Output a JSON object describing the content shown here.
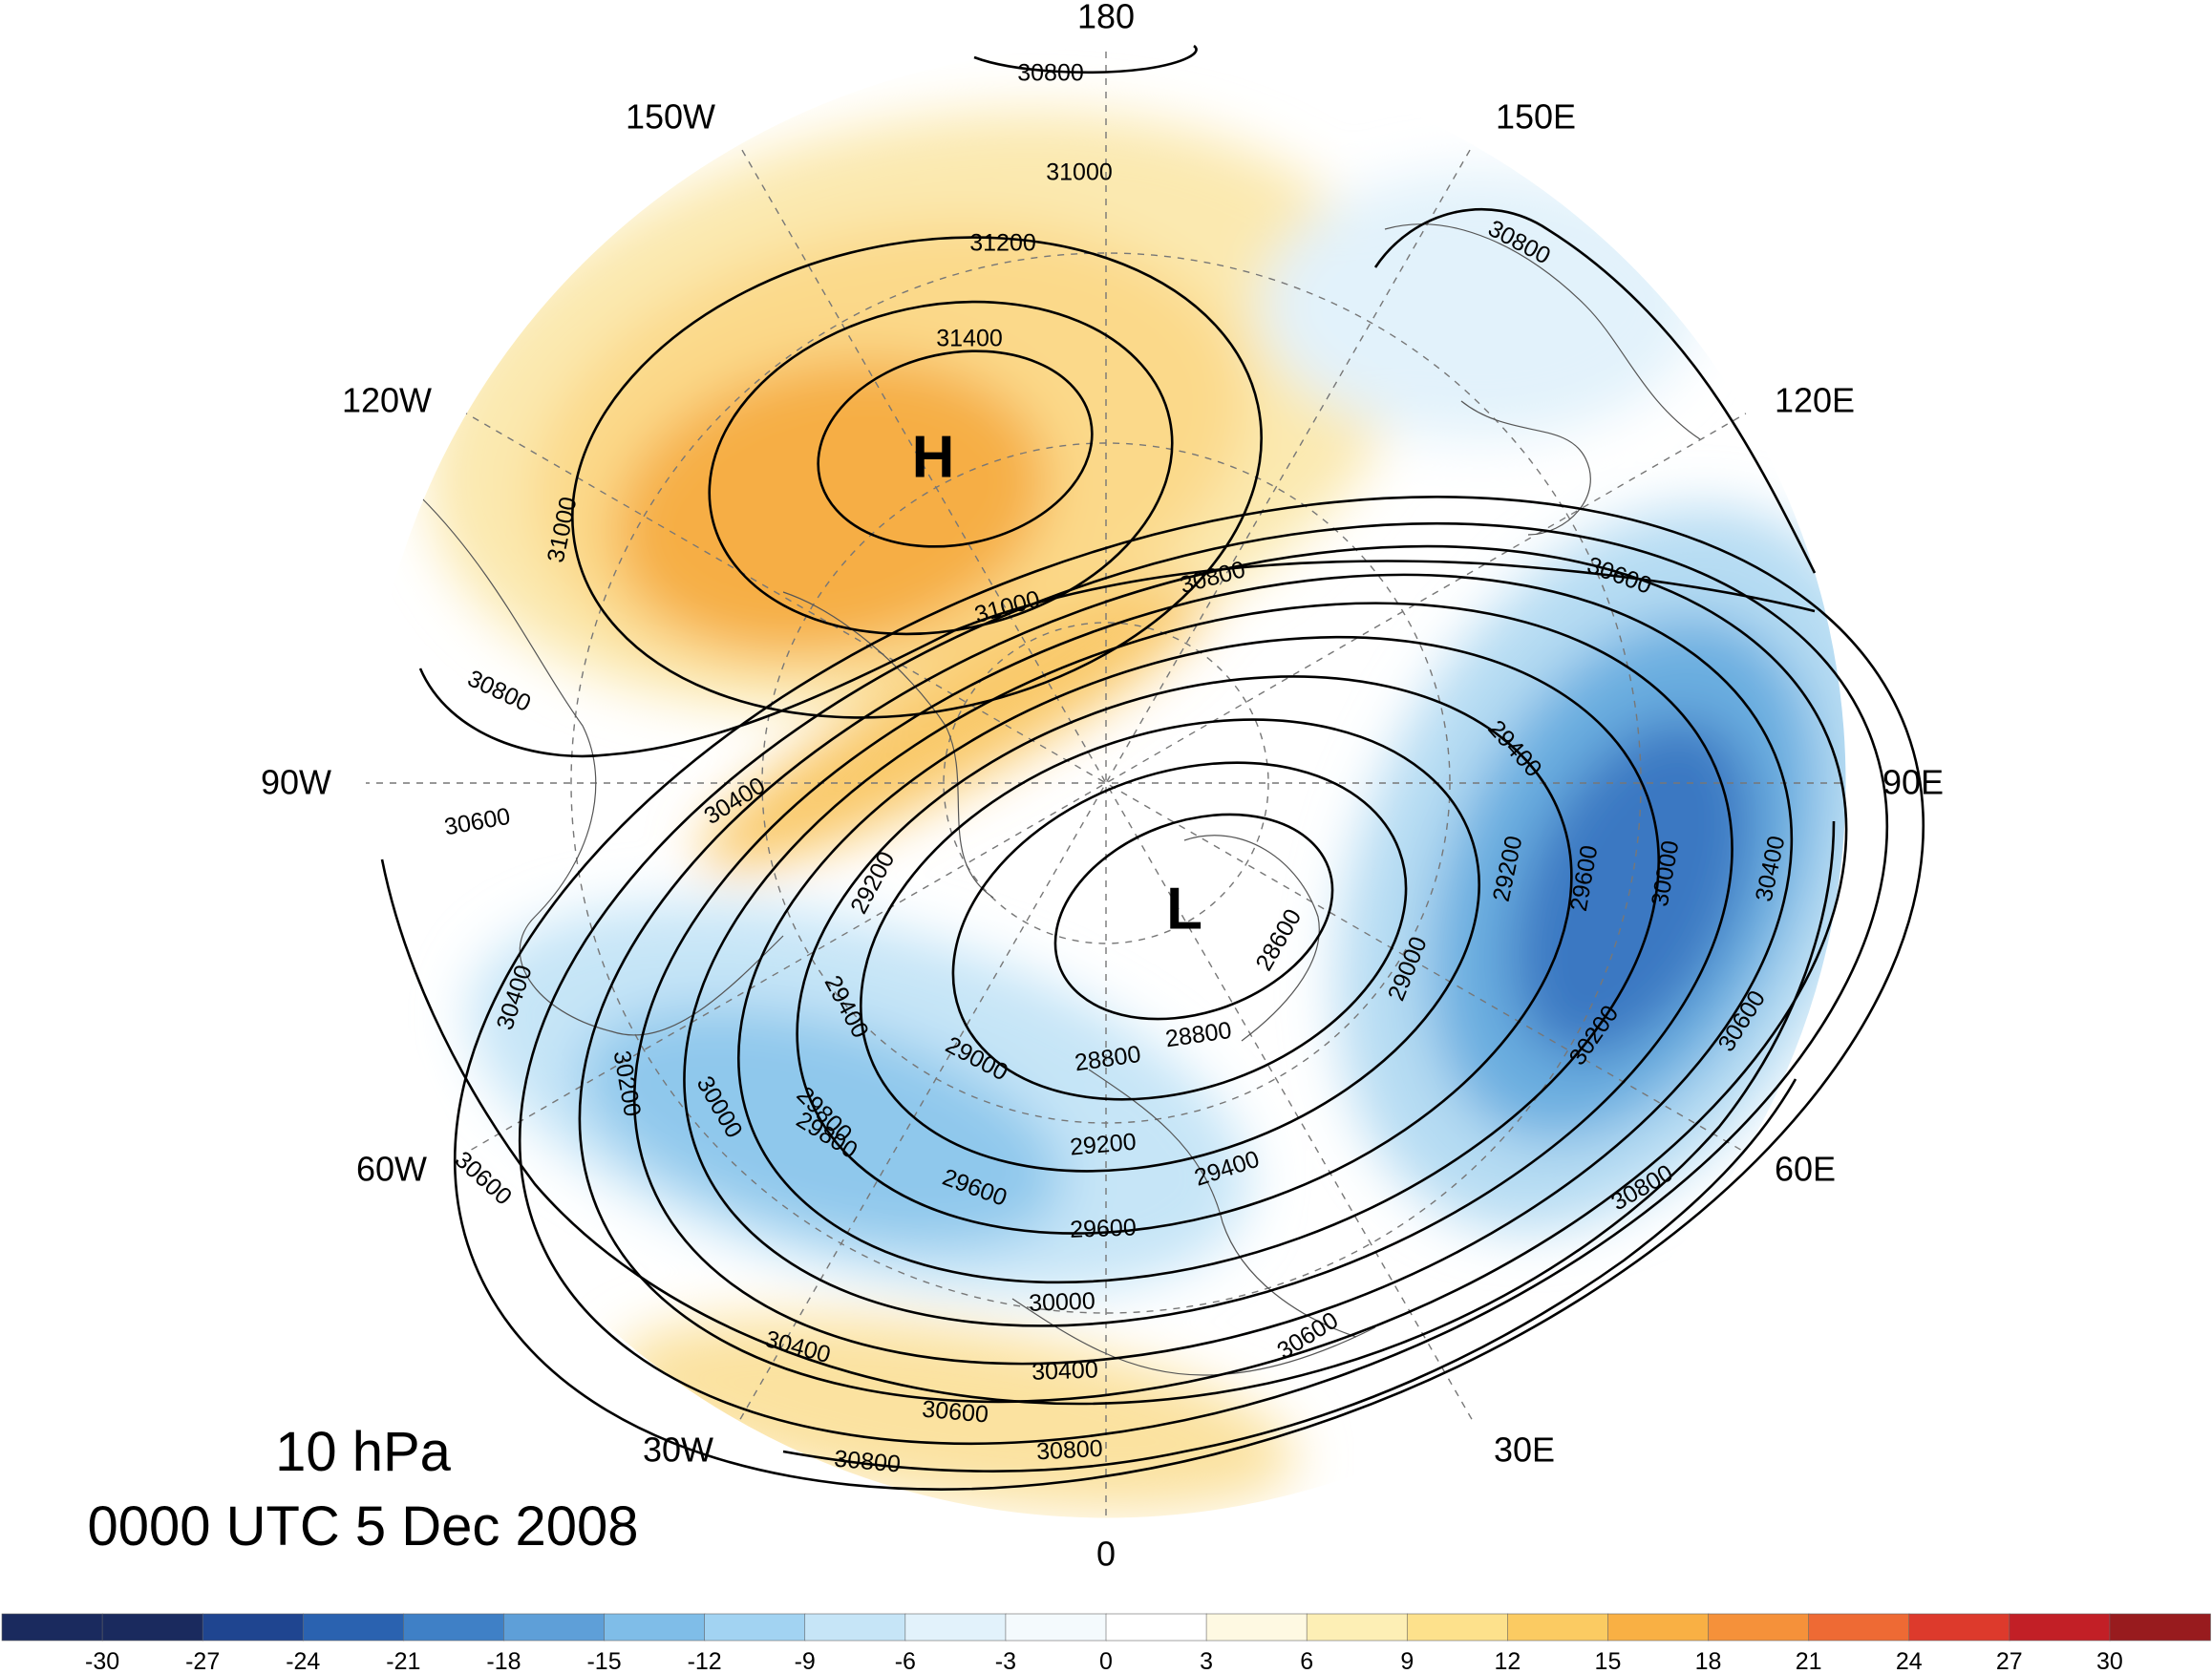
{
  "map": {
    "longitude_labels": [
      "180",
      "150E",
      "120E",
      "90E",
      "60E",
      "30E",
      "0",
      "30W",
      "60W",
      "90W",
      "120W",
      "150W"
    ],
    "centers": [
      {
        "symbol": "H",
        "kind": "high"
      },
      {
        "symbol": "L",
        "kind": "low"
      }
    ],
    "contour_labels": [
      "30800",
      "31000",
      "31200",
      "31400",
      "31000",
      "30800",
      "31000",
      "30800",
      "30600",
      "30400",
      "29200",
      "29400",
      "29000",
      "28800",
      "28600",
      "28800",
      "29000",
      "29200",
      "29400",
      "29600",
      "29800",
      "30000",
      "30200",
      "30400",
      "30600",
      "30800",
      "30400",
      "30200",
      "30000",
      "29800",
      "29600",
      "29200",
      "29400",
      "29600",
      "30000",
      "30400",
      "30600",
      "30800",
      "30600",
      "30400",
      "30600",
      "30800",
      "30600",
      "30800"
    ],
    "colors": {
      "cool_strong": "#3a78c2",
      "cool_mid": "#6aaee0",
      "cool_light": "#b6dcf3",
      "warm_light": "#fbe9b0",
      "warm_mid": "#f9c96a",
      "warm_strong": "#f6ae45"
    }
  },
  "info": {
    "level": "10 hPa",
    "datetime": "0000 UTC 5 Dec 2008"
  },
  "colorbar": {
    "labels": [
      "-30",
      "-27",
      "-24",
      "-21",
      "-18",
      "-15",
      "-12",
      "-9",
      "-6",
      "-3",
      "0",
      "3",
      "6",
      "9",
      "12",
      "15",
      "18",
      "21",
      "24",
      "27",
      "30"
    ],
    "colors": [
      "#1a2a5e",
      "#1f4590",
      "#2a62b0",
      "#3f80c6",
      "#5e9fd8",
      "#7fbde8",
      "#a2d3f2",
      "#c6e5f7",
      "#e2f2fb",
      "#f4fafd",
      "#ffffff",
      "#fef9e2",
      "#fdefb5",
      "#fde18c",
      "#fbcb62",
      "#f9b044",
      "#f5913a",
      "#ee6a34",
      "#dd3a2c",
      "#c21f26",
      "#981b1e"
    ]
  }
}
